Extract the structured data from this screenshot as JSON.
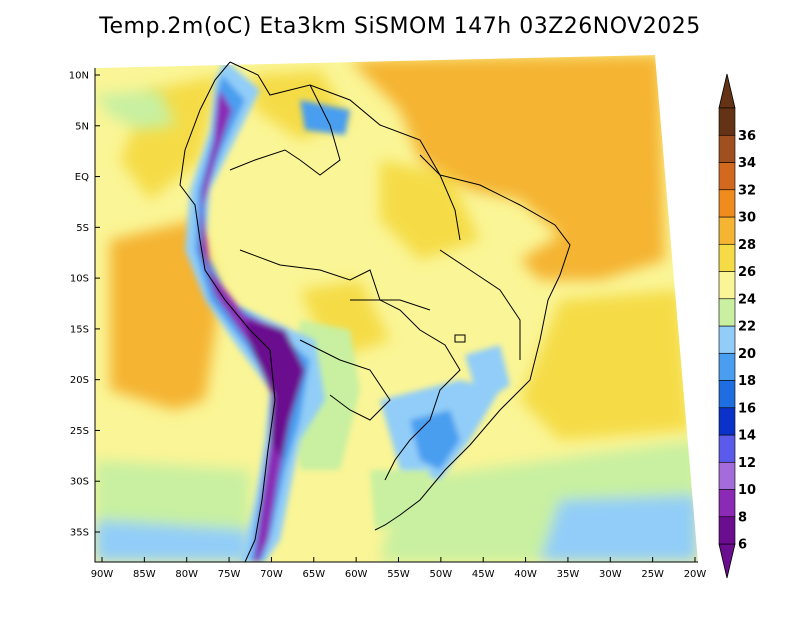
{
  "title": "Temp.2m(oC) Eta3km SiSMOM 147h 03Z26NOV2025",
  "map": {
    "lat_ticks": [
      "10N",
      "5N",
      "EQ",
      "5S",
      "10S",
      "15S",
      "20S",
      "25S",
      "30S",
      "35S"
    ],
    "lon_ticks": [
      "90W",
      "85W",
      "80W",
      "75W",
      "70W",
      "65W",
      "60W",
      "55W",
      "50W",
      "45W",
      "40W",
      "35W",
      "30W",
      "25W",
      "20W"
    ],
    "lat_values": [
      10,
      5,
      0,
      -5,
      -10,
      -15,
      -20,
      -25,
      -30,
      -35
    ],
    "lon_values": [
      -90,
      -85,
      -80,
      -75,
      -70,
      -65,
      -60,
      -55,
      -50,
      -45,
      -40,
      -35,
      -30,
      -25,
      -20
    ]
  },
  "colorbar": {
    "levels": [
      "6",
      "8",
      "10",
      "12",
      "14",
      "16",
      "18",
      "20",
      "22",
      "24",
      "26",
      "28",
      "30",
      "32",
      "34",
      "36"
    ],
    "colors": [
      "#6a0d8f",
      "#8a2ab5",
      "#a46cdb",
      "#5a5aeb",
      "#0a32c8",
      "#1e6ee1",
      "#4a9ef0",
      "#91cdf8",
      "#c8f0a0",
      "#faf596",
      "#f5dc46",
      "#f5b432",
      "#f08c1e",
      "#d2691e",
      "#a0501e",
      "#643214"
    ]
  }
}
